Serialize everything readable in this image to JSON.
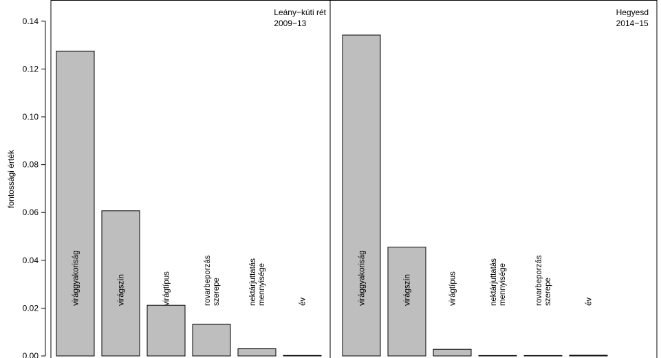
{
  "chart_data": {
    "type": "bar",
    "ylabel": "fontossági érték",
    "ylim": [
      0,
      0.148
    ],
    "yticks": [
      "0.00",
      "0.02",
      "0.04",
      "0.06",
      "0.08",
      "0.10",
      "0.12",
      "0.14"
    ],
    "bar_color": "#bebebe",
    "panels": [
      {
        "title": [
          "Leány−kúti rét",
          "2009−13"
        ],
        "categories": [
          [
            "virággyakoriság"
          ],
          [
            "virágszín"
          ],
          [
            "virágtípus"
          ],
          [
            "rovarbeporzás",
            "szerepe"
          ],
          [
            "nektárjuttatás",
            "mennyisége"
          ],
          [
            "év"
          ]
        ],
        "values": [
          0.1275,
          0.0607,
          0.0212,
          0.0132,
          0.003,
          0.0002
        ]
      },
      {
        "title": [
          "Hegyesd",
          "2014−15"
        ],
        "categories": [
          [
            "virággyakoriság"
          ],
          [
            "virágszín"
          ],
          [
            "virágtípus"
          ],
          [
            "nektárjuttatás",
            "mennyisége"
          ],
          [
            "rovarbeporzás",
            "szerepe"
          ],
          [
            "év"
          ]
        ],
        "values": [
          0.1342,
          0.0455,
          0.0028,
          0.0,
          0.0,
          0.0003
        ]
      }
    ]
  }
}
